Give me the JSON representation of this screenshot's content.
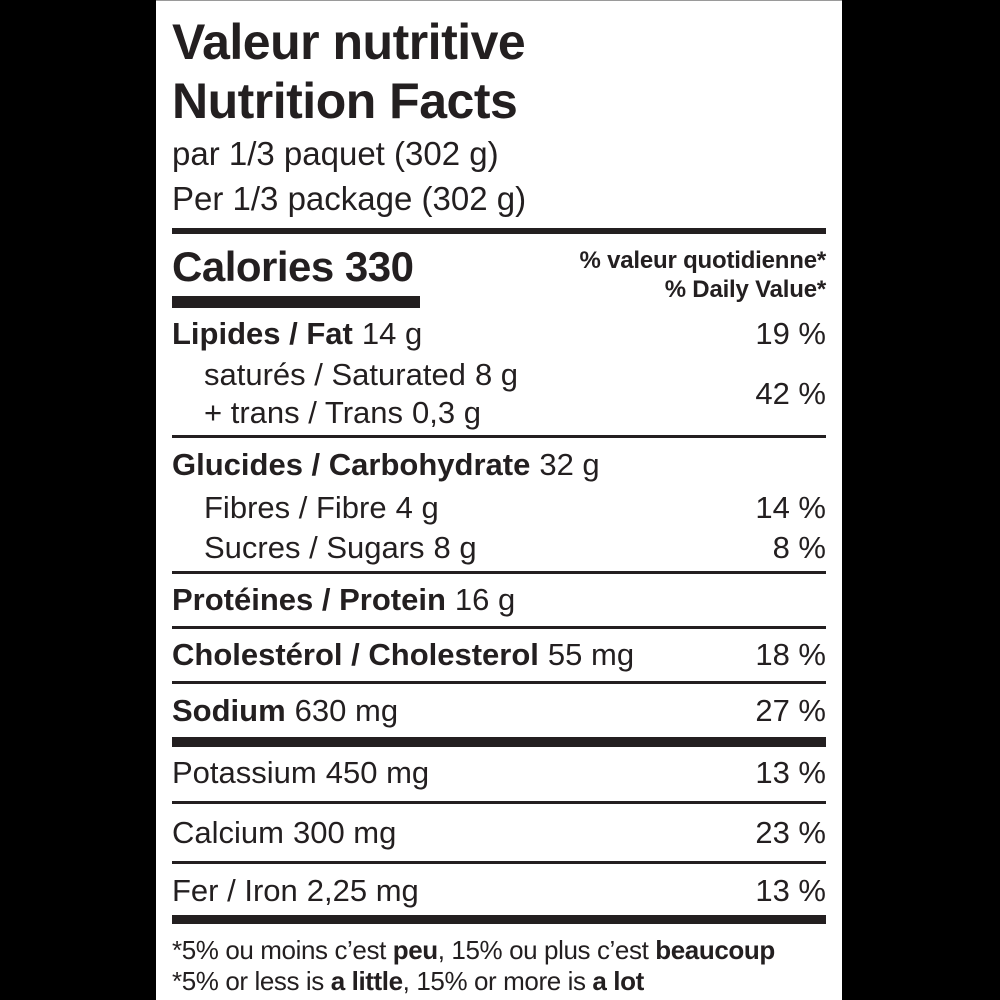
{
  "colors": {
    "background": "#000000",
    "panel": "#ffffff",
    "text": "#231f20"
  },
  "header": {
    "title_fr": "Valeur nutritive",
    "title_en": "Nutrition Facts",
    "serving_fr": "par 1/3 paquet (302 g)",
    "serving_en": "Per 1/3 package (302 g)"
  },
  "calories": {
    "label": "Calories",
    "value": "330"
  },
  "dv_header": {
    "fr": "% valeur quotidienne*",
    "en": "% Daily Value*"
  },
  "nutrients": {
    "fat": {
      "name": "Lipides / Fat",
      "amount": "14 g",
      "dv": "19 %"
    },
    "saturated": {
      "name": "saturés / Saturated",
      "amount": "8 g"
    },
    "trans": {
      "name": "+ trans / Trans",
      "amount": "0,3 g"
    },
    "saturated_trans_dv": "42 %",
    "carbohydrate": {
      "name": "Glucides / Carbohydrate",
      "amount": "32 g"
    },
    "fibre": {
      "name": "Fibres / Fibre",
      "amount": "4 g",
      "dv": "14 %"
    },
    "sugars": {
      "name": "Sucres / Sugars",
      "amount": "8 g",
      "dv": "8 %"
    },
    "protein": {
      "name": "Protéines / Protein",
      "amount": "16 g"
    },
    "cholesterol": {
      "name": "Cholestérol / Cholesterol",
      "amount": "55 mg",
      "dv": "18 %"
    },
    "sodium": {
      "name": "Sodium",
      "amount": "630 mg",
      "dv": "27 %"
    },
    "potassium": {
      "name": "Potassium",
      "amount": "450 mg",
      "dv": "13 %"
    },
    "calcium": {
      "name": "Calcium",
      "amount": "300 mg",
      "dv": "23 %"
    },
    "iron": {
      "name": "Fer / Iron",
      "amount": "2,25 mg",
      "dv": "13 %"
    }
  },
  "footnote": {
    "fr": {
      "p1": "*5% ou moins c’est ",
      "b1": "peu",
      "p2": ", 15% ou plus c’est ",
      "b2": "beaucoup"
    },
    "en": {
      "p1": "*5% or less is ",
      "b1": "a little",
      "p2": ", 15% or more is ",
      "b2": "a lot"
    }
  }
}
